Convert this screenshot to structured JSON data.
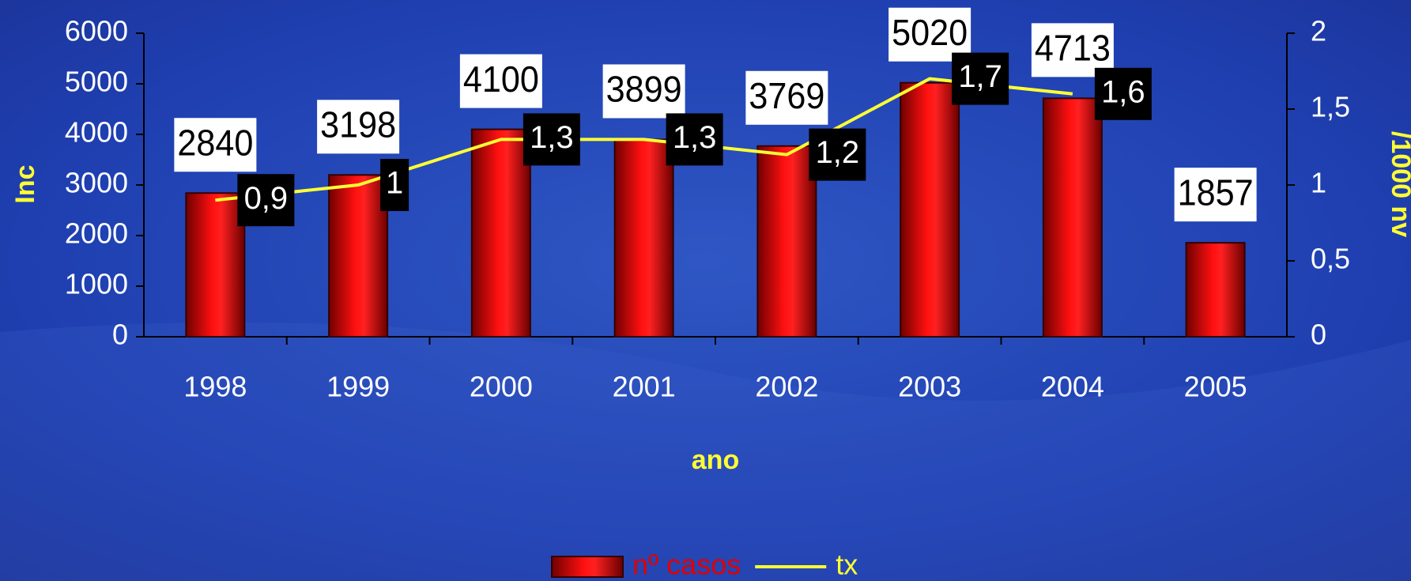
{
  "chart_data": {
    "type": "bar",
    "x_label": "ano",
    "y_label": "Inc",
    "y2_label": "/1000 nv",
    "categories": [
      "1998",
      "1999",
      "2000",
      "2001",
      "2002",
      "2003",
      "2004",
      "2005"
    ],
    "series": [
      {
        "name": "nº casos",
        "type": "bar",
        "color": "#e00000",
        "values": [
          2840,
          3198,
          4100,
          3899,
          3769,
          5020,
          4713,
          1857
        ]
      },
      {
        "name": "tx",
        "type": "line",
        "axis": "y2",
        "color": "#ffff33",
        "values": [
          0.9,
          1,
          1.3,
          1.3,
          1.2,
          1.7,
          1.6,
          null
        ],
        "value_labels": [
          "0,9",
          "1",
          "1,3",
          "1,3",
          "1,2",
          "1,7",
          "1,6",
          null
        ]
      }
    ],
    "ylim": [
      0,
      6000
    ],
    "yticks": [
      0,
      1000,
      2000,
      3000,
      4000,
      5000,
      6000
    ],
    "y2lim": [
      0,
      2
    ],
    "y2ticks": [
      0,
      {
        "value": 0.5,
        "label": "0,5"
      },
      1,
      {
        "value": 1.5,
        "label": "1,5"
      },
      2
    ],
    "legend": "bottom"
  }
}
